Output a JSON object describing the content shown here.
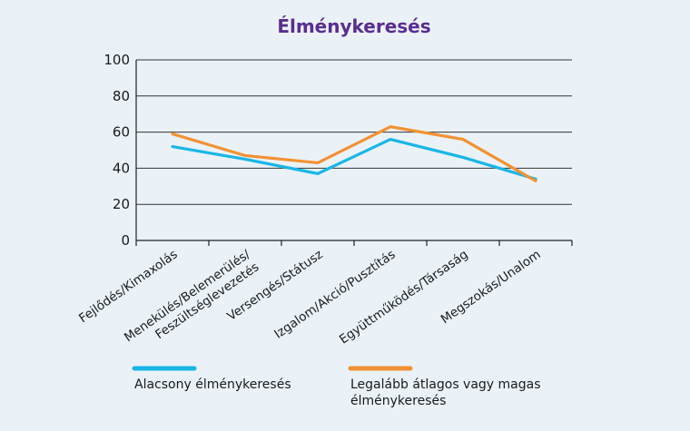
{
  "chart_data": {
    "type": "line",
    "title": "Élménykeresés",
    "categories": [
      [
        "Fejlődés/Kimaxolás"
      ],
      [
        "Menekülés/Belemerülés/",
        "Feszültséglevezetés"
      ],
      [
        "Versengés/Státusz"
      ],
      [
        "Izgalom/Akció/Pusztítás"
      ],
      [
        "Együttműködés/Társaság"
      ],
      [
        "Megszokás/Unalom"
      ]
    ],
    "ylim": [
      0,
      100
    ],
    "yticks": [
      0,
      20,
      40,
      60,
      80,
      100
    ],
    "grid": true,
    "legend_position": "bottom",
    "series": [
      {
        "name": [
          "Alacsony élménykeresés"
        ],
        "color": "#1ab6e6",
        "values": [
          52,
          45,
          37,
          56,
          46,
          34
        ]
      },
      {
        "name": [
          "Legalább átlagos vagy magas",
          "élménykeresés"
        ],
        "color": "#f29233",
        "values": [
          59,
          47,
          43,
          63,
          56,
          33
        ]
      }
    ],
    "title_color": "#5a2d91"
  }
}
